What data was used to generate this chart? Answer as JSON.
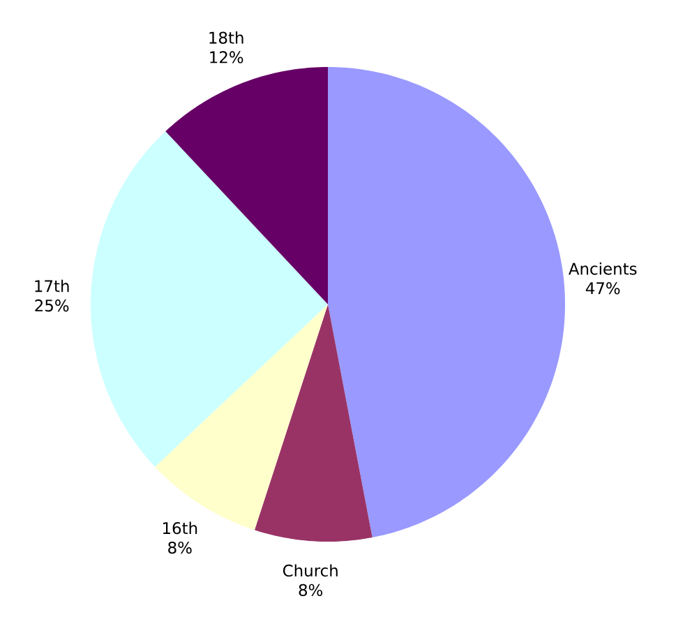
{
  "chart_data": {
    "type": "pie",
    "categories": [
      "Ancients",
      "Church",
      "16th",
      "17th",
      "18th"
    ],
    "values": [
      47,
      8,
      8,
      25,
      12
    ],
    "value_labels": [
      "47%",
      "8%",
      "8%",
      "25%",
      "12%"
    ],
    "colors": [
      "#9999ff",
      "#993366",
      "#ffffcc",
      "#ccffff",
      "#660066"
    ]
  }
}
